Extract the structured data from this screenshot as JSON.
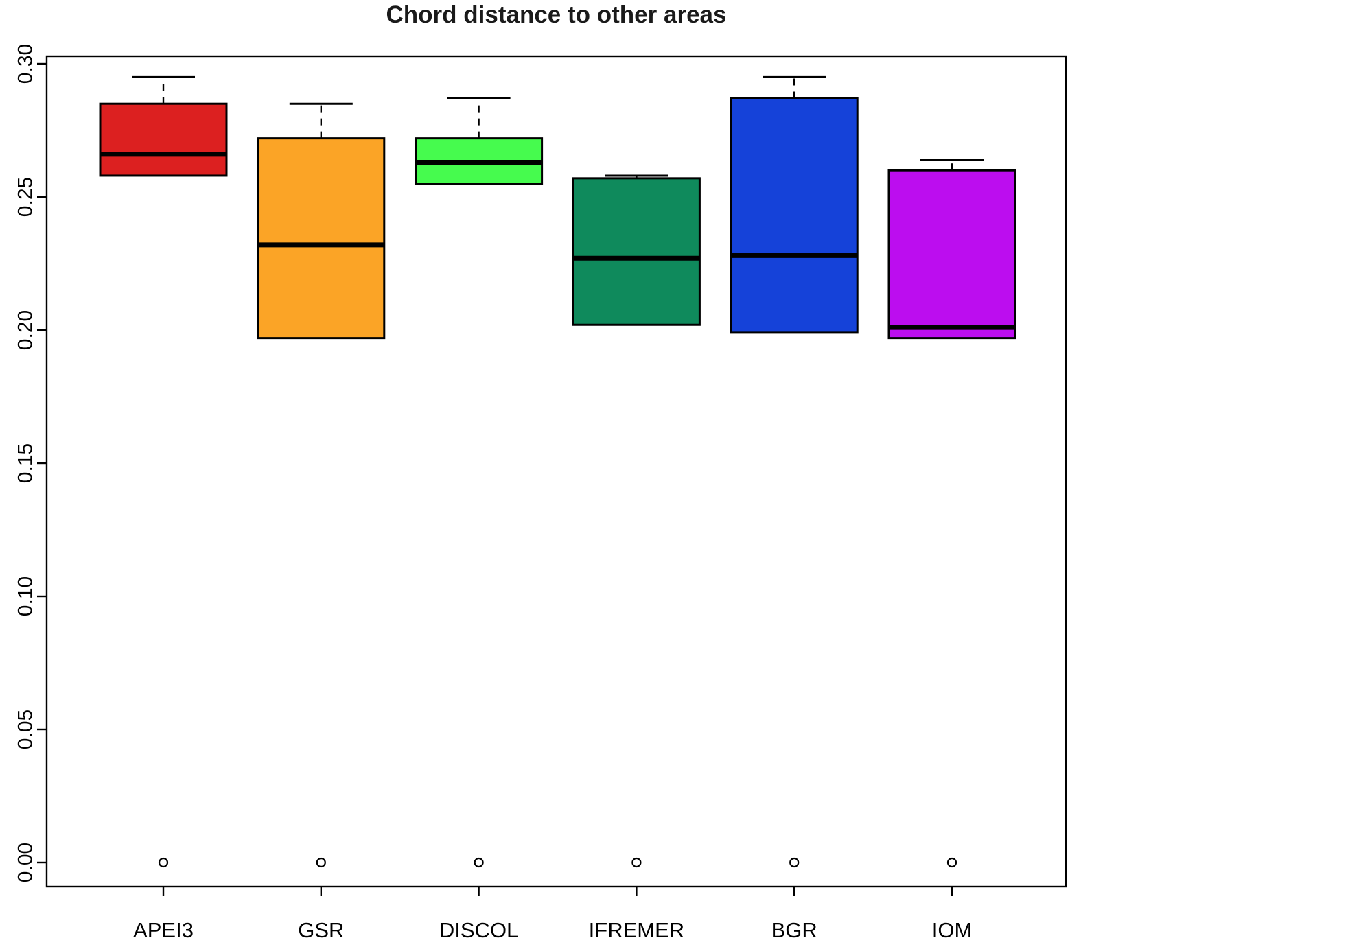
{
  "chart_data": {
    "type": "boxplot",
    "title": "Chord distance to other areas",
    "xlabel": "",
    "ylabel": "",
    "ylim": [
      0.0,
      0.3
    ],
    "ytick_labels": [
      "0.00",
      "0.05",
      "0.10",
      "0.15",
      "0.20",
      "0.25",
      "0.30"
    ],
    "categories": [
      "APEI3",
      "GSR",
      "DISCOL",
      "IFREMER",
      "BGR",
      "IOM"
    ],
    "grid": false,
    "legend": "none",
    "background": "#ffffff",
    "series": [
      {
        "name": "APEI3",
        "color": "#DC2020",
        "lower_whisker": 0.258,
        "q1": 0.258,
        "median": 0.266,
        "q3": 0.285,
        "upper_whisker": 0.295,
        "outliers": [
          0.0
        ]
      },
      {
        "name": "GSR",
        "color": "#FBA426",
        "lower_whisker": 0.197,
        "q1": 0.197,
        "median": 0.232,
        "q3": 0.272,
        "upper_whisker": 0.285,
        "outliers": [
          0.0
        ]
      },
      {
        "name": "DISCOL",
        "color": "#46FB4E",
        "lower_whisker": 0.255,
        "q1": 0.255,
        "median": 0.263,
        "q3": 0.272,
        "upper_whisker": 0.287,
        "outliers": [
          0.0
        ]
      },
      {
        "name": "IFREMER",
        "color": "#0F8A5C",
        "lower_whisker": 0.202,
        "q1": 0.202,
        "median": 0.227,
        "q3": 0.257,
        "upper_whisker": 0.258,
        "outliers": [
          0.0
        ]
      },
      {
        "name": "BGR",
        "color": "#1542D9",
        "lower_whisker": 0.199,
        "q1": 0.199,
        "median": 0.228,
        "q3": 0.287,
        "upper_whisker": 0.295,
        "outliers": [
          0.0
        ]
      },
      {
        "name": "IOM",
        "color": "#BC0DEF",
        "lower_whisker": 0.197,
        "q1": 0.197,
        "median": 0.201,
        "q3": 0.26,
        "upper_whisker": 0.264,
        "outliers": [
          0.0
        ]
      }
    ]
  }
}
